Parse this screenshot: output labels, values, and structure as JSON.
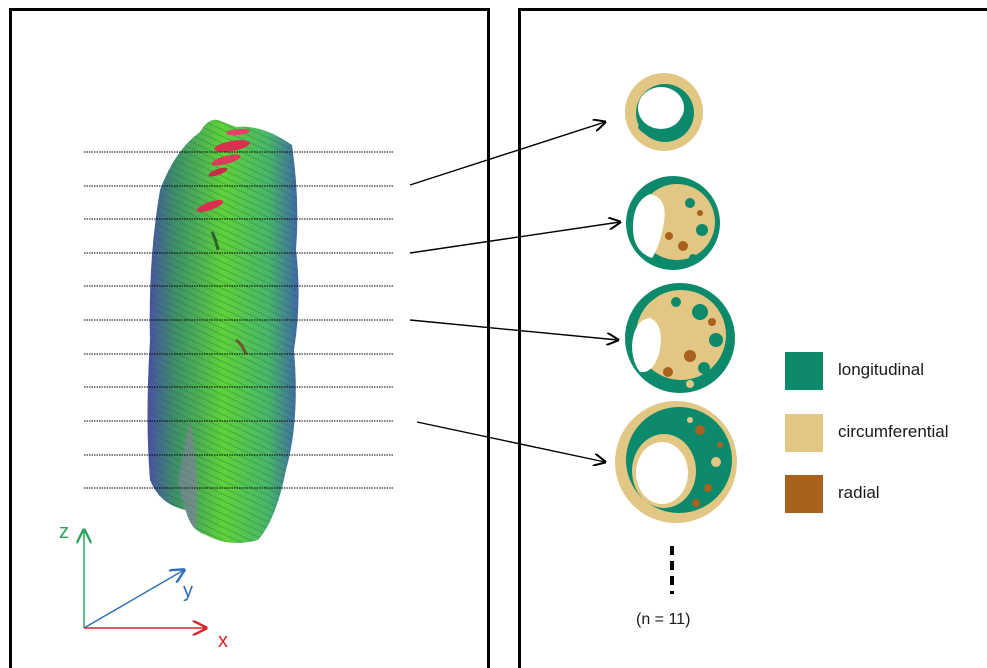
{
  "axes": {
    "z": {
      "label": "z",
      "color": "#2ca25f"
    },
    "y": {
      "label": "y",
      "color": "#2f6fb5"
    },
    "x": {
      "label": "x",
      "color": "#d7262b"
    }
  },
  "legend": [
    {
      "label": "longitudinal",
      "color": "#0c8a6b"
    },
    {
      "label": "circumferential",
      "color": "#e2c684"
    },
    {
      "label": "radial",
      "color": "#a8621e"
    }
  ],
  "sample_count_label": "(n = 11)",
  "colors": {
    "longitudinal": "#0c8a6b",
    "circumferential": "#e2c684",
    "radial": "#a8621e"
  }
}
